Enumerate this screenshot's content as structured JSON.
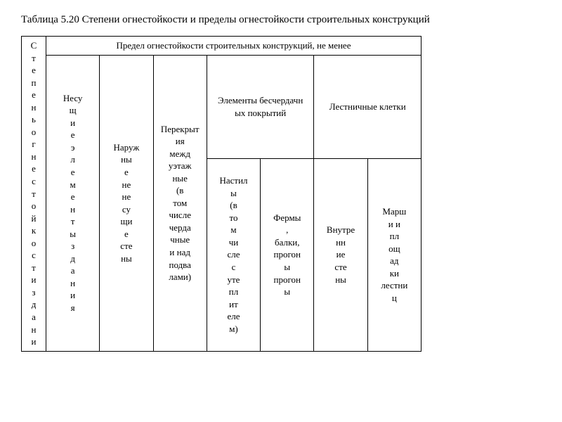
{
  "title": "Таблица 5.20 Степени огнестойкости и пределы огнестойкости строительных конструкций",
  "header": {
    "c0": "С\nт\nе\nп\nе\nн\nь\nо\nг\nн\nе\nс\nт\nо\nй\nк\nо\nс\nт\nи\nз\nд\nа\nн\nи",
    "top": "Предел огнестойкости строительных конструкций, не менее",
    "c1": "Несу\nщ\nи\nе\nэ\nл\nе\nм\nе\nн\nт\nы\nз\nд\nа\nн\nи\nя",
    "c2": "Наруж\nны\nе\nне\nне\nсу\nщи\nе\nсте\nны",
    "c3": "Перекрыт\nия\nмежд\nуэтаж\nные\n(в\nтом\nчисле\nчерда\nчные\nи над\nподва\nлами)",
    "g1": "Элементы бесчердачн\nых покрытий",
    "g2": "Лестничные клетки",
    "c4": "Настил\nы\n(в\nто\nм\nчи\nсле\nс\nуте\nпл\nит\nеле\nм)",
    "c5": "Фермы\n,\nбалки,\nпрогон\nы\nпрогон\nы",
    "c6": "Внутре\nнн\nие\nсте\nны",
    "c7": "Марш\nи и\nпл\nощ\nад\nки\nлестни\nц"
  },
  "style": {
    "font_family": "Times New Roman",
    "title_fontsize": 15,
    "cell_fontsize": 13,
    "border_color": "#000000",
    "background": "#ffffff",
    "text_color": "#000000"
  }
}
